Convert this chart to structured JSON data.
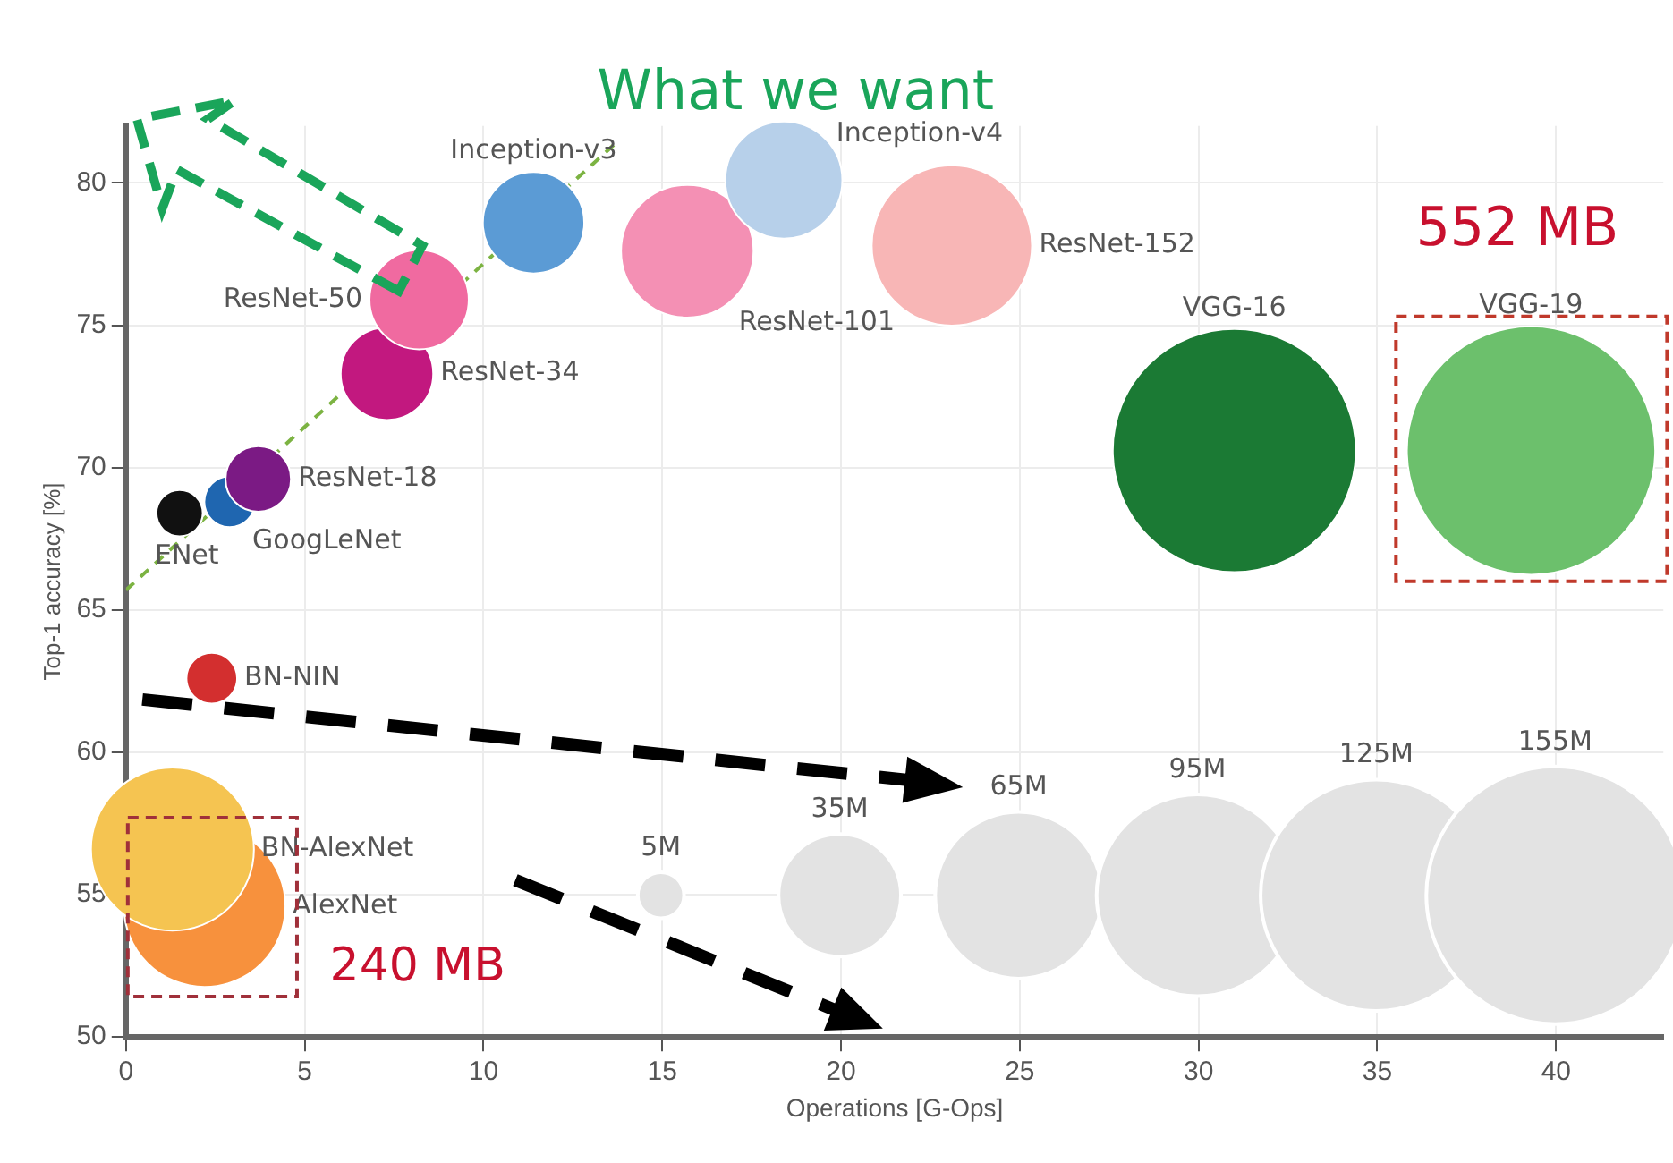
{
  "chart_data": {
    "type": "bubble",
    "xlabel": "Operations [G-Ops]",
    "ylabel": "Top-1 accuracy [%]",
    "xlim": [
      0,
      43
    ],
    "ylim": [
      50,
      82
    ],
    "xticks": [
      0,
      5,
      10,
      15,
      20,
      25,
      30,
      35,
      40
    ],
    "yticks": [
      50,
      55,
      60,
      65,
      70,
      75,
      80
    ],
    "grid": true,
    "size_legend": [
      {
        "value": 5,
        "label": "5M"
      },
      {
        "value": 35,
        "label": "35M"
      },
      {
        "value": 65,
        "label": "65M"
      },
      {
        "value": 95,
        "label": "95M"
      },
      {
        "value": 125,
        "label": "125M"
      },
      {
        "value": 155,
        "label": "155M"
      }
    ],
    "series": [
      {
        "name": "Inception-v4",
        "color": "#b7d0ea",
        "x": [
          18.4
        ],
        "values": [
          80.1
        ],
        "sizes": [
          32
        ]
      },
      {
        "name": "Inception-v3",
        "color": "#5b9bd5",
        "x": [
          11.4
        ],
        "values": [
          78.6
        ],
        "sizes": [
          24
        ]
      },
      {
        "name": "ResNet-50",
        "color": "#f06aa0",
        "x": [
          8.2
        ],
        "values": [
          75.9
        ],
        "sizes": [
          23
        ]
      },
      {
        "name": "ResNet-101",
        "color": "#f490b4",
        "x": [
          15.7
        ],
        "values": [
          77.6
        ],
        "sizes": [
          41
        ]
      },
      {
        "name": "ResNet-152",
        "color": "#f8b6b6",
        "x": [
          23.1
        ],
        "values": [
          77.8
        ],
        "sizes": [
          60
        ]
      },
      {
        "name": "ResNet-34",
        "color": "#c2187f",
        "x": [
          7.3
        ],
        "values": [
          73.3
        ],
        "sizes": [
          20
        ]
      },
      {
        "name": "ResNet-18",
        "color": "#7b1a84",
        "x": [
          3.7
        ],
        "values": [
          69.6
        ],
        "sizes": [
          10
        ]
      },
      {
        "name": "GoogLeNet",
        "color": "#1f66b0",
        "x": [
          2.9
        ],
        "values": [
          68.8
        ],
        "sizes": [
          6
        ]
      },
      {
        "name": "ENet",
        "color": "#111111",
        "x": [
          1.5
        ],
        "values": [
          68.4
        ],
        "sizes": [
          5
        ]
      },
      {
        "name": "BN-NIN",
        "color": "#d32f2f",
        "x": [
          2.4
        ],
        "values": [
          62.6
        ],
        "sizes": [
          6
        ]
      },
      {
        "name": "VGG-16",
        "color": "#1b7a34",
        "x": [
          31.0
        ],
        "values": [
          70.6
        ],
        "sizes": [
          138
        ]
      },
      {
        "name": "VGG-19",
        "color": "#6cc06c",
        "x": [
          39.3
        ],
        "values": [
          70.6
        ],
        "sizes": [
          144
        ]
      },
      {
        "name": "BN-AlexNet",
        "color": "#f5c451",
        "x": [
          1.3
        ],
        "values": [
          56.6
        ],
        "sizes": [
          62
        ]
      },
      {
        "name": "AlexNet",
        "color": "#f7913d",
        "x": [
          2.2
        ],
        "values": [
          54.6
        ],
        "sizes": [
          61
        ]
      },
      {
        "type": "line",
        "color": "#7cb342",
        "line_style": "dashed",
        "x": [
          0,
          13.7
        ],
        "values": [
          65.7,
          81.4
        ]
      }
    ],
    "annotations": [
      "What we want",
      "552 MB",
      "240 MB"
    ]
  }
}
